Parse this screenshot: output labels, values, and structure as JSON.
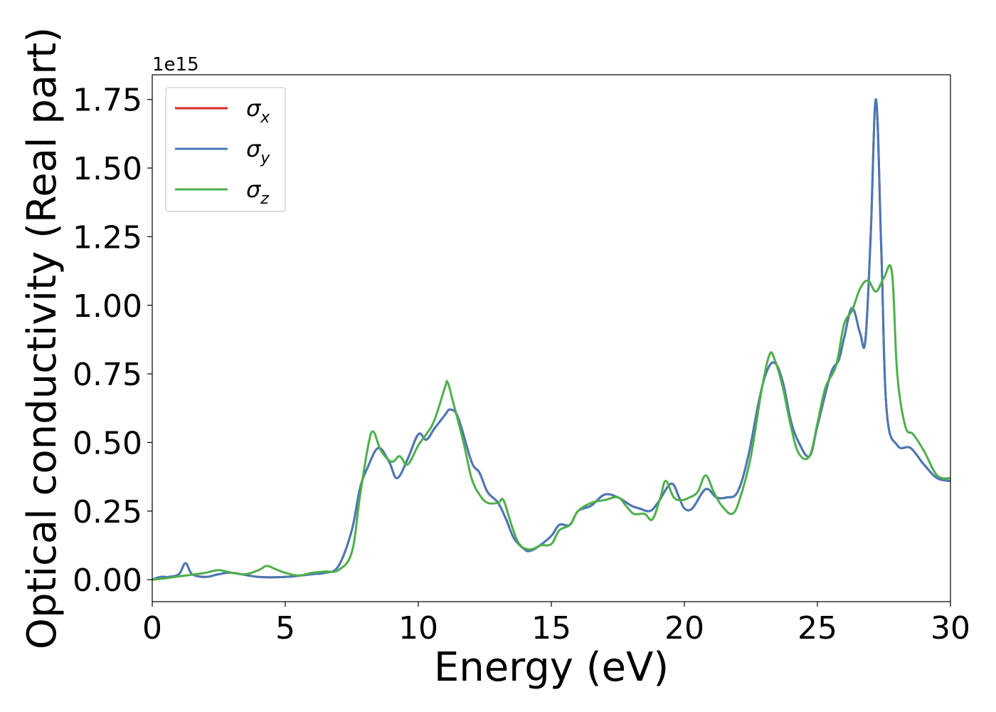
{
  "chart_data": {
    "type": "line",
    "title": "",
    "xlabel": "Energy (eV)",
    "ylabel": "Optical conductivity (Real part)",
    "y_offset_label": "1e15",
    "xlim": [
      0,
      30
    ],
    "ylim": [
      -0.08,
      1.84
    ],
    "x_ticks": [
      0,
      5,
      10,
      15,
      20,
      25,
      30
    ],
    "x_tick_labels": [
      "0",
      "5",
      "10",
      "15",
      "20",
      "25",
      "30"
    ],
    "y_ticks": [
      0.0,
      0.25,
      0.5,
      0.75,
      1.0,
      1.25,
      1.5,
      1.75
    ],
    "y_tick_labels": [
      "0.00",
      "0.25",
      "0.50",
      "0.75",
      "1.00",
      "1.25",
      "1.50",
      "1.75"
    ],
    "grid": false,
    "legend_position": "upper-left",
    "series": [
      {
        "name": "σx",
        "legend_base": "σ",
        "legend_sub": "x",
        "color": "#d62728",
        "x": [
          0,
          0.3,
          0.6,
          1.0,
          1.25,
          1.5,
          2.0,
          2.5,
          3.0,
          4.0,
          5.0,
          6.0,
          6.5,
          7.0,
          7.5,
          7.8,
          8.1,
          8.5,
          8.9,
          9.2,
          9.6,
          10.0,
          10.3,
          10.6,
          11.0,
          11.2,
          11.5,
          12.0,
          12.3,
          12.6,
          13.0,
          13.3,
          13.6,
          14.0,
          14.2,
          14.5,
          15.0,
          15.3,
          15.7,
          16.0,
          16.5,
          17.0,
          17.5,
          18.0,
          18.3,
          18.7,
          19.0,
          19.5,
          19.8,
          20.0,
          20.3,
          20.8,
          21.2,
          21.6,
          22.0,
          22.4,
          22.8,
          23.1,
          23.4,
          23.7,
          24.0,
          24.3,
          24.7,
          25.0,
          25.5,
          25.8,
          26.0,
          26.3,
          26.6,
          26.8,
          27.0,
          27.2,
          27.4,
          27.6,
          28.0,
          28.5,
          29.0,
          29.5,
          30.0
        ],
        "values": [
          0.0,
          0.01,
          0.01,
          0.02,
          0.06,
          0.02,
          0.01,
          0.02,
          0.025,
          0.01,
          0.01,
          0.02,
          0.025,
          0.05,
          0.18,
          0.33,
          0.41,
          0.48,
          0.43,
          0.37,
          0.44,
          0.53,
          0.51,
          0.55,
          0.6,
          0.62,
          0.59,
          0.43,
          0.39,
          0.32,
          0.28,
          0.22,
          0.15,
          0.11,
          0.105,
          0.12,
          0.16,
          0.2,
          0.2,
          0.25,
          0.27,
          0.31,
          0.3,
          0.27,
          0.26,
          0.25,
          0.28,
          0.35,
          0.3,
          0.26,
          0.26,
          0.33,
          0.3,
          0.3,
          0.32,
          0.45,
          0.65,
          0.76,
          0.79,
          0.72,
          0.58,
          0.5,
          0.45,
          0.56,
          0.75,
          0.8,
          0.88,
          0.99,
          0.9,
          0.87,
          1.25,
          1.75,
          1.2,
          0.62,
          0.49,
          0.48,
          0.42,
          0.37,
          0.36
        ]
      },
      {
        "name": "σy",
        "legend_base": "σ",
        "legend_sub": "y",
        "color": "#4878b8",
        "x": [
          0,
          0.3,
          0.6,
          1.0,
          1.25,
          1.5,
          2.0,
          2.5,
          3.0,
          4.0,
          5.0,
          6.0,
          6.5,
          7.0,
          7.5,
          7.8,
          8.1,
          8.5,
          8.9,
          9.2,
          9.6,
          10.0,
          10.3,
          10.6,
          11.0,
          11.2,
          11.5,
          12.0,
          12.3,
          12.6,
          13.0,
          13.3,
          13.6,
          14.0,
          14.2,
          14.5,
          15.0,
          15.3,
          15.7,
          16.0,
          16.5,
          17.0,
          17.5,
          18.0,
          18.3,
          18.7,
          19.0,
          19.5,
          19.8,
          20.0,
          20.3,
          20.8,
          21.2,
          21.6,
          22.0,
          22.4,
          22.8,
          23.1,
          23.4,
          23.7,
          24.0,
          24.3,
          24.7,
          25.0,
          25.5,
          25.8,
          26.0,
          26.3,
          26.6,
          26.8,
          27.0,
          27.2,
          27.4,
          27.6,
          28.0,
          28.5,
          29.0,
          29.5,
          30.0
        ],
        "values": [
          0.0,
          0.01,
          0.01,
          0.02,
          0.06,
          0.02,
          0.01,
          0.02,
          0.025,
          0.01,
          0.01,
          0.02,
          0.025,
          0.05,
          0.18,
          0.33,
          0.41,
          0.48,
          0.43,
          0.37,
          0.44,
          0.53,
          0.51,
          0.55,
          0.6,
          0.62,
          0.59,
          0.43,
          0.39,
          0.32,
          0.28,
          0.22,
          0.15,
          0.11,
          0.105,
          0.12,
          0.16,
          0.2,
          0.2,
          0.25,
          0.27,
          0.31,
          0.3,
          0.27,
          0.26,
          0.25,
          0.28,
          0.35,
          0.3,
          0.26,
          0.26,
          0.33,
          0.3,
          0.3,
          0.32,
          0.45,
          0.65,
          0.76,
          0.79,
          0.72,
          0.58,
          0.5,
          0.45,
          0.56,
          0.75,
          0.8,
          0.88,
          0.99,
          0.9,
          0.87,
          1.25,
          1.75,
          1.2,
          0.62,
          0.49,
          0.48,
          0.42,
          0.37,
          0.36
        ]
      },
      {
        "name": "σz",
        "legend_base": "σ",
        "legend_sub": "z",
        "color": "#4daf4a",
        "x": [
          0,
          0.5,
          1.0,
          1.5,
          2.0,
          2.5,
          3.0,
          3.5,
          4.0,
          4.3,
          4.6,
          5.0,
          5.5,
          6.0,
          6.5,
          7.0,
          7.5,
          7.8,
          8.1,
          8.3,
          8.6,
          9.0,
          9.3,
          9.6,
          10.0,
          10.3,
          10.6,
          11.0,
          11.1,
          11.3,
          11.7,
          12.0,
          12.3,
          12.6,
          13.0,
          13.2,
          13.5,
          13.8,
          14.2,
          14.6,
          15.0,
          15.3,
          15.7,
          16.0,
          16.5,
          17.0,
          17.5,
          17.8,
          18.1,
          18.5,
          18.8,
          19.1,
          19.3,
          19.6,
          19.9,
          20.2,
          20.5,
          20.8,
          21.1,
          21.4,
          21.8,
          22.1,
          22.5,
          22.9,
          23.2,
          23.4,
          23.7,
          24.0,
          24.3,
          24.7,
          25.0,
          25.3,
          25.7,
          26.0,
          26.3,
          26.6,
          26.9,
          27.2,
          27.5,
          27.8,
          28.0,
          28.3,
          28.6,
          29.0,
          29.5,
          30.0
        ],
        "values": [
          0.0,
          0.005,
          0.012,
          0.018,
          0.025,
          0.035,
          0.025,
          0.02,
          0.035,
          0.05,
          0.04,
          0.025,
          0.015,
          0.025,
          0.03,
          0.035,
          0.1,
          0.3,
          0.48,
          0.54,
          0.47,
          0.43,
          0.45,
          0.42,
          0.49,
          0.53,
          0.58,
          0.7,
          0.72,
          0.65,
          0.5,
          0.37,
          0.31,
          0.28,
          0.28,
          0.29,
          0.2,
          0.13,
          0.11,
          0.125,
          0.13,
          0.18,
          0.2,
          0.25,
          0.28,
          0.29,
          0.3,
          0.27,
          0.24,
          0.24,
          0.22,
          0.3,
          0.36,
          0.3,
          0.29,
          0.3,
          0.32,
          0.38,
          0.32,
          0.27,
          0.24,
          0.3,
          0.45,
          0.69,
          0.82,
          0.8,
          0.7,
          0.56,
          0.46,
          0.45,
          0.57,
          0.7,
          0.78,
          0.93,
          0.98,
          1.06,
          1.09,
          1.05,
          1.1,
          1.12,
          0.75,
          0.56,
          0.53,
          0.47,
          0.38,
          0.37
        ]
      }
    ]
  }
}
